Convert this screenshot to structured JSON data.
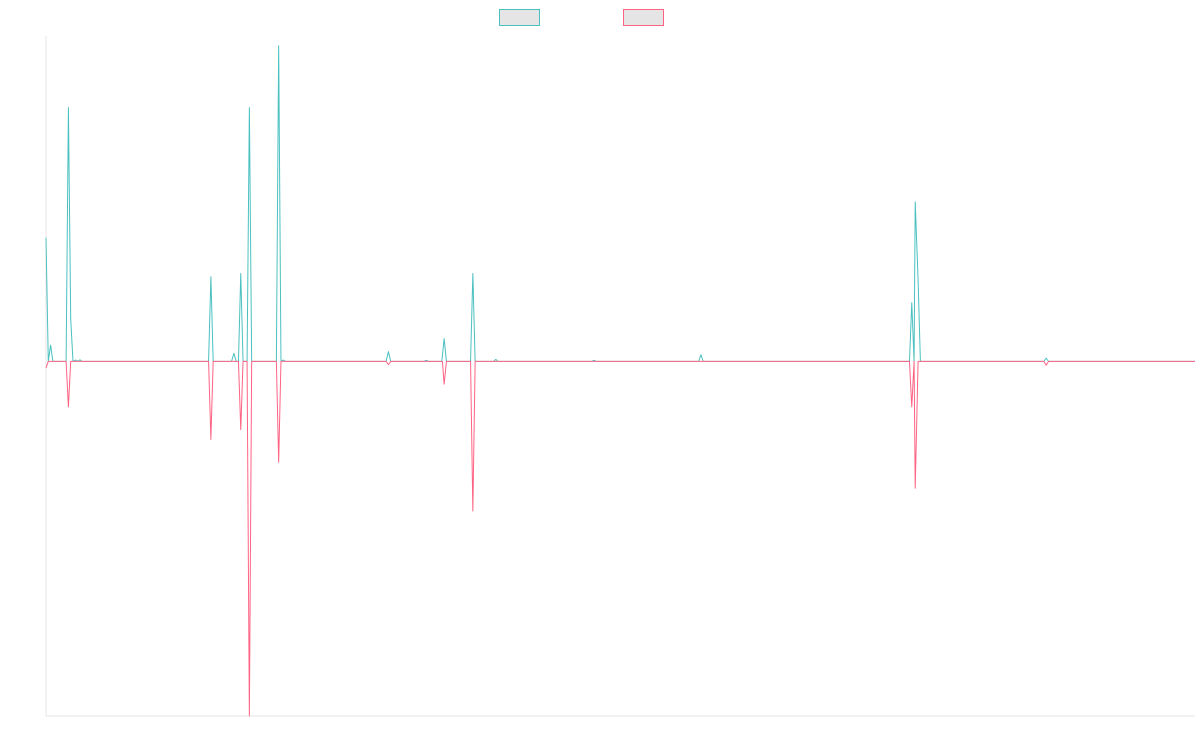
{
  "chart_data": {
    "type": "line",
    "title": "",
    "xlabel": "",
    "ylabel": "",
    "x_range": [
      0,
      200
    ],
    "ylim": [
      -1.09,
      1.0
    ],
    "grid": false,
    "legend_position": "top-center",
    "series": [
      {
        "name": "",
        "color": "#4bc0c0",
        "fill": "#e5e5e5",
        "points": [
          [
            0,
            0.38
          ],
          [
            0.4,
            0.0
          ],
          [
            0.8,
            0.05
          ],
          [
            1.2,
            0.0
          ],
          [
            3.5,
            0.0
          ],
          [
            3.9,
            0.78
          ],
          [
            4.3,
            0.13
          ],
          [
            4.7,
            0.0
          ],
          [
            5.2,
            0.004
          ],
          [
            5.6,
            0.0
          ],
          [
            5.9,
            0.005
          ],
          [
            6.3,
            0.0
          ],
          [
            28.3,
            0.0
          ],
          [
            28.7,
            0.26
          ],
          [
            29.1,
            0.0
          ],
          [
            32.3,
            0.0
          ],
          [
            32.7,
            0.025
          ],
          [
            33.1,
            0.0
          ],
          [
            33.5,
            0.0
          ],
          [
            33.9,
            0.27
          ],
          [
            34.3,
            0.0
          ],
          [
            35.0,
            0.0
          ],
          [
            35.4,
            0.78
          ],
          [
            35.8,
            0.0
          ],
          [
            40.1,
            0.0
          ],
          [
            40.5,
            0.97
          ],
          [
            40.9,
            0.0
          ],
          [
            41.3,
            0.004
          ],
          [
            41.7,
            0.0
          ],
          [
            59.2,
            0.0
          ],
          [
            59.6,
            0.03
          ],
          [
            60.0,
            0.0
          ],
          [
            65.8,
            0.0
          ],
          [
            66.2,
            0.003
          ],
          [
            66.6,
            0.0
          ],
          [
            68.9,
            0.0
          ],
          [
            69.3,
            0.07
          ],
          [
            69.7,
            0.0
          ],
          [
            73.9,
            0.0
          ],
          [
            74.3,
            0.27
          ],
          [
            74.7,
            0.0
          ],
          [
            77.9,
            0.0
          ],
          [
            78.3,
            0.006
          ],
          [
            78.7,
            0.0
          ],
          [
            95.0,
            0.0
          ],
          [
            95.4,
            0.003
          ],
          [
            95.8,
            0.0
          ],
          [
            113.6,
            0.0
          ],
          [
            114.0,
            0.02
          ],
          [
            114.4,
            0.0
          ],
          [
            150.3,
            0.0
          ],
          [
            150.7,
            0.18
          ],
          [
            151.1,
            0.0
          ],
          [
            151.3,
            0.49
          ],
          [
            151.8,
            0.25
          ],
          [
            152.2,
            0.0
          ],
          [
            173.7,
            0.0
          ],
          [
            174.1,
            0.01
          ],
          [
            174.5,
            0.0
          ],
          [
            200,
            0.0
          ]
        ]
      },
      {
        "name": "",
        "color": "#ff6384",
        "fill": "#e5e5e5",
        "points": [
          [
            0,
            -0.02
          ],
          [
            0.4,
            0.0
          ],
          [
            3.5,
            0.0
          ],
          [
            3.9,
            -0.14
          ],
          [
            4.3,
            0.0
          ],
          [
            28.3,
            0.0
          ],
          [
            28.7,
            -0.24
          ],
          [
            29.1,
            0.0
          ],
          [
            33.5,
            0.0
          ],
          [
            33.9,
            -0.21
          ],
          [
            34.3,
            0.0
          ],
          [
            35.0,
            0.0
          ],
          [
            35.4,
            -1.09
          ],
          [
            35.8,
            0.0
          ],
          [
            40.1,
            0.0
          ],
          [
            40.5,
            -0.31
          ],
          [
            40.9,
            0.0
          ],
          [
            59.2,
            0.0
          ],
          [
            59.6,
            -0.01
          ],
          [
            60.0,
            0.0
          ],
          [
            69.0,
            0.0
          ],
          [
            69.3,
            -0.07
          ],
          [
            69.7,
            0.0
          ],
          [
            73.9,
            0.0
          ],
          [
            74.3,
            -0.46
          ],
          [
            74.7,
            0.0
          ],
          [
            150.3,
            0.0
          ],
          [
            150.7,
            -0.14
          ],
          [
            151.1,
            0.0
          ],
          [
            151.3,
            -0.39
          ],
          [
            151.8,
            0.0
          ],
          [
            173.7,
            0.0
          ],
          [
            174.1,
            -0.012
          ],
          [
            174.5,
            0.0
          ],
          [
            200,
            0.0
          ]
        ]
      }
    ],
    "axis_color": "#e5e5e5"
  }
}
